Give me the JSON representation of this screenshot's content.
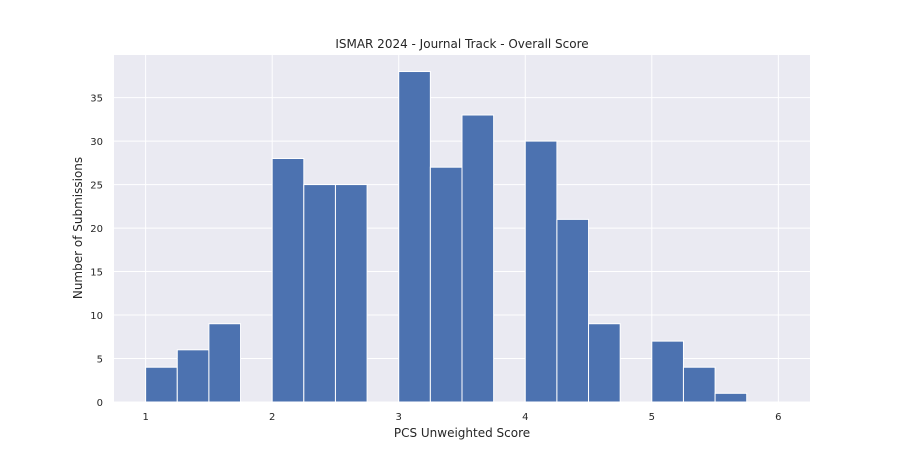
{
  "chart_data": {
    "type": "bar",
    "title": "ISMAR 2024 - Journal Track - Overall Score",
    "xlabel": "PCS Unweighted Score",
    "ylabel": "Number of Submissions",
    "xlim": [
      0.75,
      6.25
    ],
    "ylim": [
      0,
      39.9
    ],
    "xticks": [
      1,
      2,
      3,
      4,
      5,
      6
    ],
    "yticks": [
      0,
      5,
      10,
      15,
      20,
      25,
      30,
      35
    ],
    "grid": true,
    "legend": "none",
    "bin_width": 0.25,
    "bins": [
      {
        "start": 1.0,
        "end": 1.25,
        "value": 4
      },
      {
        "start": 1.25,
        "end": 1.5,
        "value": 6
      },
      {
        "start": 1.5,
        "end": 1.75,
        "value": 9
      },
      {
        "start": 2.0,
        "end": 2.25,
        "value": 28
      },
      {
        "start": 2.25,
        "end": 2.5,
        "value": 25
      },
      {
        "start": 2.5,
        "end": 2.75,
        "value": 25
      },
      {
        "start": 3.0,
        "end": 3.25,
        "value": 38
      },
      {
        "start": 3.25,
        "end": 3.5,
        "value": 27
      },
      {
        "start": 3.5,
        "end": 3.75,
        "value": 33
      },
      {
        "start": 4.0,
        "end": 4.25,
        "value": 30
      },
      {
        "start": 4.25,
        "end": 4.5,
        "value": 21
      },
      {
        "start": 4.5,
        "end": 4.75,
        "value": 9
      },
      {
        "start": 5.0,
        "end": 5.25,
        "value": 7
      },
      {
        "start": 5.25,
        "end": 5.5,
        "value": 4
      },
      {
        "start": 5.5,
        "end": 5.75,
        "value": 1
      }
    ],
    "colors": {
      "bar": "#4c72b0",
      "background": "#eaeaf2",
      "grid": "#ffffff"
    }
  }
}
